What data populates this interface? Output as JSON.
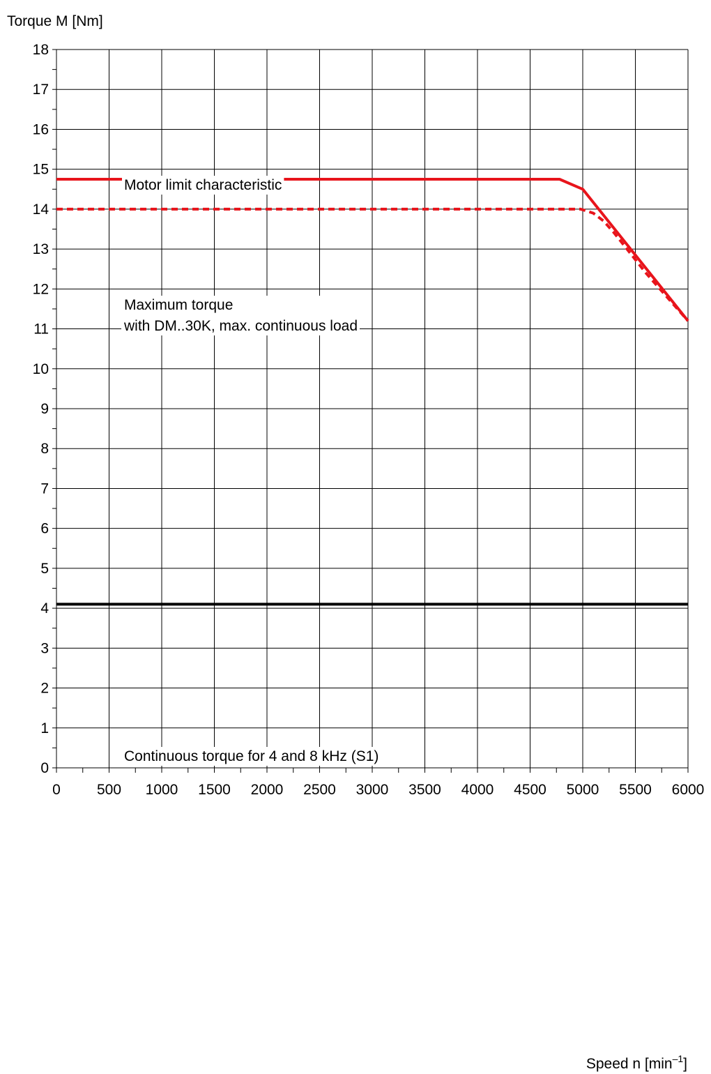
{
  "chart_data": {
    "type": "line",
    "ylabel": "Torque M [Nm]",
    "xlabel": {
      "base": "Speed n [min",
      "superscript": "–1",
      "close": "]"
    },
    "xlim": [
      0,
      6000
    ],
    "ylim": [
      0,
      18
    ],
    "x_ticks": [
      0,
      500,
      1000,
      1500,
      2000,
      2500,
      3000,
      3500,
      4000,
      4500,
      5000,
      5500,
      6000
    ],
    "y_ticks": [
      0,
      1,
      2,
      3,
      4,
      5,
      6,
      7,
      8,
      9,
      10,
      11,
      12,
      13,
      14,
      15,
      16,
      17,
      18
    ],
    "x_minor_step": 250,
    "y_minor_step": 0.5,
    "grid": true,
    "series": [
      {
        "name": "Motor limit characteristic",
        "color": "#e8141b",
        "style": "solid",
        "x": [
          0,
          4780,
          5000,
          6000
        ],
        "y": [
          14.75,
          14.75,
          14.5,
          11.2
        ]
      },
      {
        "name": "Maximum torque with DM..30K, max. continuous load",
        "color": "#e8141b",
        "style": "dashed",
        "x": [
          0,
          4980,
          5100,
          5200,
          5300,
          5450,
          5600,
          5800,
          6000
        ],
        "y": [
          14.0,
          14.0,
          13.9,
          13.7,
          13.4,
          12.9,
          12.4,
          11.8,
          11.2
        ]
      },
      {
        "name": "Continuous torque for 4 and 8 kHz (S1)",
        "color": "#000000",
        "style": "solid",
        "x": [
          0,
          6000
        ],
        "y": [
          4.1,
          4.1
        ]
      }
    ],
    "annotations": [
      {
        "lines": [
          "Motor limit characteristic"
        ]
      },
      {
        "lines": [
          "Maximum torque",
          "with DM..30K, max. continuous load"
        ]
      },
      {
        "lines": [
          "Continuous torque for 4 and 8 kHz (S1)"
        ]
      }
    ]
  }
}
